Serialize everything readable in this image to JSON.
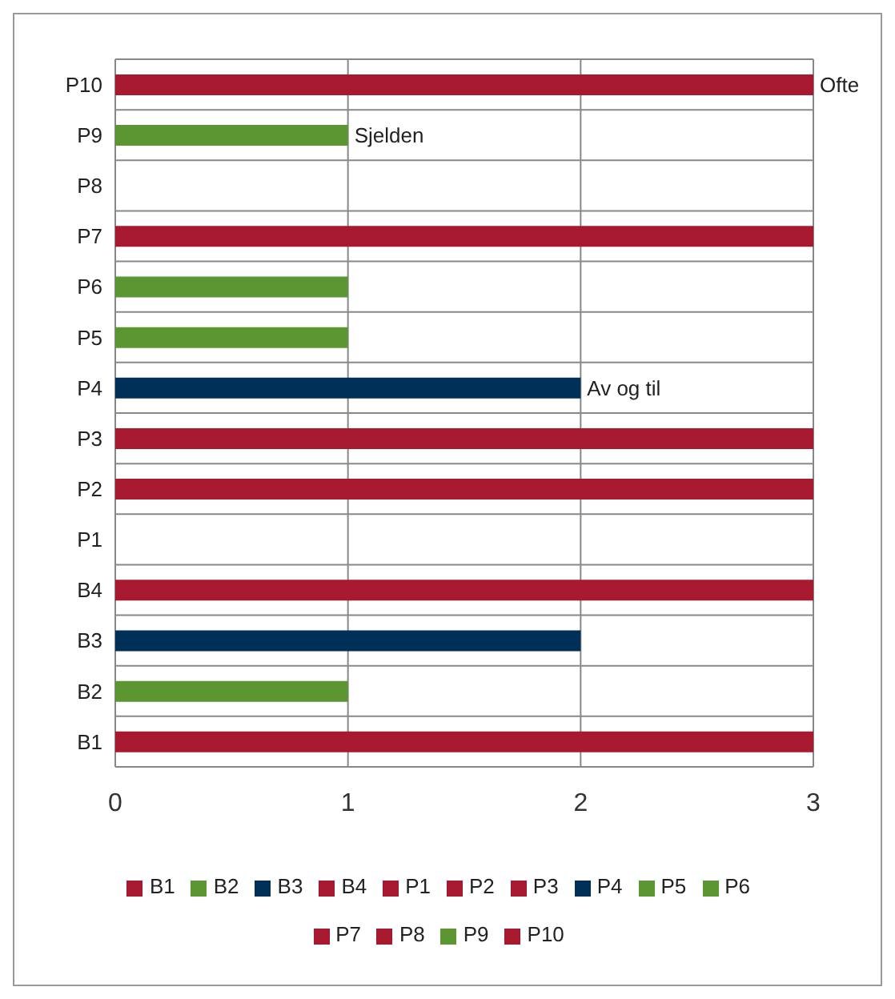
{
  "chart_data": {
    "type": "bar",
    "orientation": "horizontal",
    "stacked": true,
    "categories": [
      "P10",
      "P9",
      "P8",
      "P7",
      "P6",
      "P5",
      "P4",
      "P3",
      "P2",
      "P1",
      "B4",
      "B3",
      "B2",
      "B1"
    ],
    "series": [
      {
        "name": "B1",
        "color": "#a6192e",
        "values": [
          null,
          null,
          null,
          null,
          null,
          null,
          null,
          null,
          null,
          null,
          null,
          null,
          null,
          3
        ]
      },
      {
        "name": "B2",
        "color": "#5b9632",
        "values": [
          null,
          null,
          null,
          null,
          null,
          null,
          null,
          null,
          null,
          null,
          null,
          null,
          1,
          null
        ]
      },
      {
        "name": "B3",
        "color": "#003057",
        "values": [
          null,
          null,
          null,
          null,
          null,
          null,
          null,
          null,
          null,
          null,
          null,
          2,
          null,
          null
        ]
      },
      {
        "name": "B4",
        "color": "#a6192e",
        "values": [
          null,
          null,
          null,
          null,
          null,
          null,
          null,
          null,
          null,
          null,
          3,
          null,
          null,
          null
        ]
      },
      {
        "name": "P1",
        "color": "#a6192e",
        "values": [
          null,
          null,
          null,
          null,
          null,
          null,
          null,
          null,
          null,
          0,
          null,
          null,
          null,
          null
        ]
      },
      {
        "name": "P2",
        "color": "#a6192e",
        "values": [
          null,
          null,
          null,
          null,
          null,
          null,
          null,
          null,
          3,
          null,
          null,
          null,
          null,
          null
        ]
      },
      {
        "name": "P3",
        "color": "#a6192e",
        "values": [
          null,
          null,
          null,
          null,
          null,
          null,
          null,
          3,
          null,
          null,
          null,
          null,
          null,
          null
        ]
      },
      {
        "name": "P4",
        "color": "#003057",
        "values": [
          null,
          null,
          null,
          null,
          null,
          null,
          2,
          null,
          null,
          null,
          null,
          null,
          null,
          null
        ]
      },
      {
        "name": "P5",
        "color": "#5b9632",
        "values": [
          null,
          null,
          null,
          null,
          null,
          1,
          null,
          null,
          null,
          null,
          null,
          null,
          null,
          null
        ]
      },
      {
        "name": "P6",
        "color": "#5b9632",
        "values": [
          null,
          null,
          null,
          null,
          1,
          null,
          null,
          null,
          null,
          null,
          null,
          null,
          null,
          null
        ]
      },
      {
        "name": "P7",
        "color": "#a6192e",
        "values": [
          null,
          null,
          null,
          3,
          null,
          null,
          null,
          null,
          null,
          null,
          null,
          null,
          null,
          null
        ]
      },
      {
        "name": "P8",
        "color": "#a6192e",
        "values": [
          null,
          null,
          0,
          null,
          null,
          null,
          null,
          null,
          null,
          null,
          null,
          null,
          null,
          null
        ]
      },
      {
        "name": "P9",
        "color": "#5b9632",
        "values": [
          null,
          1,
          null,
          null,
          null,
          null,
          null,
          null,
          null,
          null,
          null,
          null,
          null,
          null
        ]
      },
      {
        "name": "P10",
        "color": "#a6192e",
        "values": [
          3,
          null,
          null,
          null,
          null,
          null,
          null,
          null,
          null,
          null,
          null,
          null,
          null,
          null
        ]
      }
    ],
    "xlim": [
      0,
      3
    ],
    "xticks": [
      0,
      1,
      2,
      3
    ],
    "grid": true,
    "legend": "bottom",
    "annotations": [
      {
        "text": "Ofte",
        "x": 3,
        "y": "P10"
      },
      {
        "text": "Sjelden",
        "x": 1,
        "y": "P9"
      },
      {
        "text": "Av og til",
        "x": 2,
        "y": "P4"
      }
    ]
  }
}
